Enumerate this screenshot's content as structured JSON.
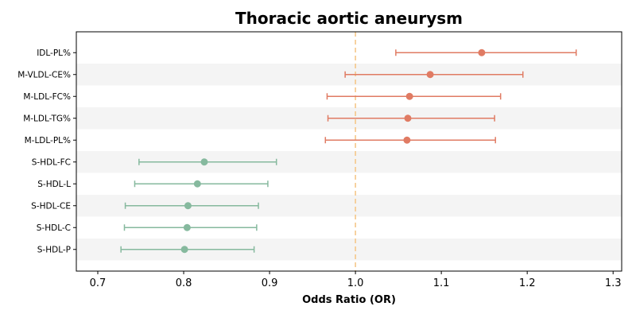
{
  "chart_data": {
    "type": "forest",
    "title": "Thoracic aortic aneurysm",
    "xlabel": "Odds Ratio (OR)",
    "ylabel": "",
    "xlim": [
      0.675,
      1.31
    ],
    "xticks": [
      "0.7",
      "0.8",
      "0.9",
      "1.0",
      "1.1",
      "1.2",
      "1.3"
    ],
    "xtick_values": [
      0.7,
      0.8,
      0.9,
      1.0,
      1.1,
      1.2,
      1.3
    ],
    "reference_line": 1.0,
    "reference_line_style": "dashed",
    "row_shading": "alternating",
    "grid": false,
    "colors": {
      "positive": "#e07b63",
      "negative": "#86b99e",
      "reference": "#f5c88a",
      "band": "#f4f4f4"
    },
    "rows": [
      {
        "label": "IDL-PL%",
        "or": 1.147,
        "lower": 1.047,
        "upper": 1.257,
        "group": "positive"
      },
      {
        "label": "M-VLDL-CE%",
        "or": 1.087,
        "lower": 0.988,
        "upper": 1.195,
        "group": "positive"
      },
      {
        "label": "M-LDL-FC%",
        "or": 1.063,
        "lower": 0.967,
        "upper": 1.169,
        "group": "positive"
      },
      {
        "label": "M-LDL-TG%",
        "or": 1.061,
        "lower": 0.968,
        "upper": 1.162,
        "group": "positive"
      },
      {
        "label": "M-LDL-PL%",
        "or": 1.06,
        "lower": 0.965,
        "upper": 1.163,
        "group": "positive"
      },
      {
        "label": "S-HDL-FC",
        "or": 0.824,
        "lower": 0.748,
        "upper": 0.908,
        "group": "negative"
      },
      {
        "label": "S-HDL-L",
        "or": 0.816,
        "lower": 0.743,
        "upper": 0.898,
        "group": "negative"
      },
      {
        "label": "S-HDL-CE",
        "or": 0.805,
        "lower": 0.732,
        "upper": 0.887,
        "group": "negative"
      },
      {
        "label": "S-HDL-C",
        "or": 0.804,
        "lower": 0.731,
        "upper": 0.885,
        "group": "negative"
      },
      {
        "label": "S-HDL-P",
        "or": 0.801,
        "lower": 0.727,
        "upper": 0.882,
        "group": "negative"
      }
    ]
  }
}
